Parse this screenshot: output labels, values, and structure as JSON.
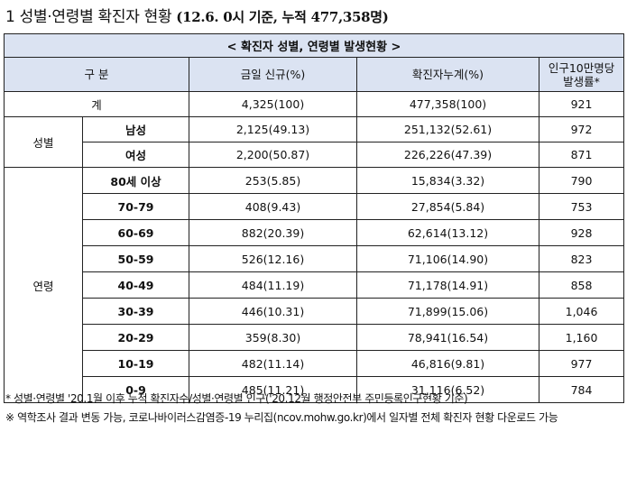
{
  "heading": {
    "main": "1  성별·연령별 확진자 현황",
    "sub": " (12.6. 0시 기준, 누적 477,358명)"
  },
  "table": {
    "banner": "< 확진자 성별, 연령별 발생현황 >",
    "headers": {
      "category": "구 분",
      "new": "금일 신규(%)",
      "cumulative": "확진자누계(%)",
      "rate_line1": "인구10만명당",
      "rate_line2": "발생률*"
    },
    "total": {
      "label": "계",
      "new": "4,325(100)",
      "cumulative": "477,358(100)",
      "rate": "921"
    },
    "sex_group": "성별",
    "sex_rows": [
      {
        "label": "남성",
        "new": "2,125(49.13)",
        "cumulative": "251,132(52.61)",
        "rate": "972"
      },
      {
        "label": "여성",
        "new": "2,200(50.87)",
        "cumulative": "226,226(47.39)",
        "rate": "871"
      }
    ],
    "age_group": "연령",
    "age_rows": [
      {
        "label": "80세 이상",
        "new": "253(5.85)",
        "cumulative": "15,834(3.32)",
        "rate": "790"
      },
      {
        "label": "70-79",
        "new": "408(9.43)",
        "cumulative": "27,854(5.84)",
        "rate": "753"
      },
      {
        "label": "60-69",
        "new": "882(20.39)",
        "cumulative": "62,614(13.12)",
        "rate": "928"
      },
      {
        "label": "50-59",
        "new": "526(12.16)",
        "cumulative": "71,106(14.90)",
        "rate": "823"
      },
      {
        "label": "40-49",
        "new": "484(11.19)",
        "cumulative": "71,178(14.91)",
        "rate": "858"
      },
      {
        "label": "30-39",
        "new": "446(10.31)",
        "cumulative": "71,899(15.06)",
        "rate": "1,046"
      },
      {
        "label": "20-29",
        "new": "359(8.30)",
        "cumulative": "78,941(16.54)",
        "rate": "1,160"
      },
      {
        "label": "10-19",
        "new": "482(11.14)",
        "cumulative": "46,816(9.81)",
        "rate": "977"
      },
      {
        "label": "0-9",
        "new": "485(11.21)",
        "cumulative": "31,116(6.52)",
        "rate": "784"
      }
    ]
  },
  "notes": {
    "note1": "* 성별·연령별 '20.1월 이후 누적 확진자수/성별·연령별 인구('20.12월 행정안전부 주민등록인구현황 기준)",
    "note2": "※ 역학조사 결과 변동 가능, 코로나바이러스감염증-19 누리집(ncov.mohw.go.kr)에서 일자별 전체 확진자 현황 다운로드 가능"
  },
  "colors": {
    "header_bg": "#dbe3f2",
    "border": "#222222"
  }
}
